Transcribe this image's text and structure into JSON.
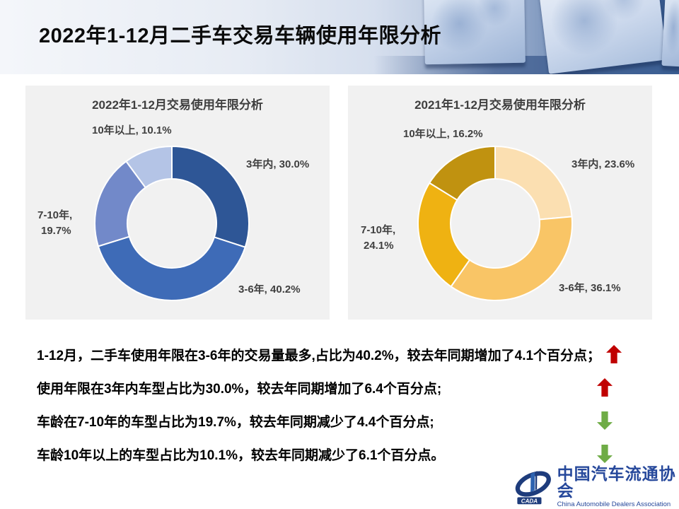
{
  "page": {
    "title": "2022年1-12月二手车交易车辆使用年限分析"
  },
  "chart_data": [
    {
      "type": "pie",
      "subtype": "donut",
      "title": "2022年1-12月交易使用年限分析",
      "categories": [
        "3年内",
        "3-6年",
        "7-10年",
        "10年以上"
      ],
      "values": [
        30.0,
        40.2,
        19.7,
        10.1
      ],
      "unit": "%",
      "colors": [
        "#2E5696",
        "#3E6BB7",
        "#7289C9",
        "#B4C4E6"
      ],
      "start_angle_deg": 0,
      "direction": "clockwise",
      "legend": "none",
      "labels": {
        "top": "10年以上, 10.1%",
        "right": "3年内, 30.0%",
        "left1": "7-10年,",
        "left2": "19.7%",
        "bottom": "3-6年, 40.2%"
      }
    },
    {
      "type": "pie",
      "subtype": "donut",
      "title": "2021年1-12月交易使用年限分析",
      "categories": [
        "3年内",
        "3-6年",
        "7-10年",
        "10年以上"
      ],
      "values": [
        23.6,
        36.1,
        24.1,
        16.2
      ],
      "unit": "%",
      "colors": [
        "#FBDFB1",
        "#F9C566",
        "#EFB212",
        "#C09210"
      ],
      "start_angle_deg": 0,
      "direction": "clockwise",
      "legend": "none",
      "labels": {
        "top": "10年以上, 16.2%",
        "right": "3年内, 23.6%",
        "left1": "7-10年,",
        "left2": "24.1%",
        "bottom": "3-6年, 36.1%"
      }
    }
  ],
  "insights": [
    {
      "text": "1-12月，二手车使用年限在3-6年的交易量最多,占比为40.2%，较去年同期增加了4.1个百分点；",
      "arrow": "up"
    },
    {
      "text": "使用年限在3年内车型占比为30.0%，较去年同期增加了6.4个百分点;",
      "arrow": "up"
    },
    {
      "text": "车龄在7-10年的车型占比为19.7%，较去年同期减少了4.4个百分点;",
      "arrow": "down"
    },
    {
      "text": "车龄10年以上的车型占比为10.1%，较去年同期减少了6.1个百分点。",
      "arrow": "down"
    }
  ],
  "arrow_colors": {
    "up": "#C00000",
    "down": "#6FAC46"
  },
  "footer": {
    "org_cn": "中国汽车流通协会",
    "org_en": "China Automobile Dealers Association",
    "logo_abbr": "CADA"
  }
}
